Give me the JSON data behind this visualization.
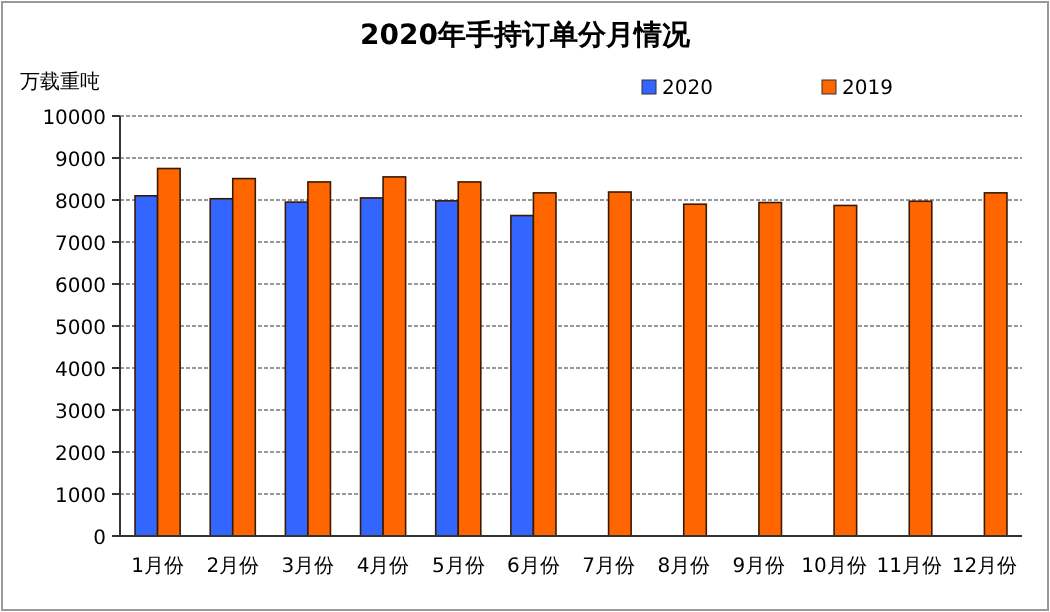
{
  "chart_data": {
    "type": "bar",
    "title": "2020年手持订单分月情况",
    "ylabel": "万载重吨",
    "categories": [
      "1月份",
      "2月份",
      "3月份",
      "4月份",
      "5月份",
      "6月份",
      "7月份",
      "8月份",
      "9月份",
      "10月份",
      "11月份",
      "12月份"
    ],
    "series": [
      {
        "name": "2020",
        "color": "#3366ff",
        "values": [
          8100,
          8030,
          7950,
          8050,
          7980,
          7630,
          null,
          null,
          null,
          null,
          null,
          null
        ]
      },
      {
        "name": "2019",
        "color": "#ff6600",
        "values": [
          8750,
          8510,
          8430,
          8550,
          8430,
          8170,
          8190,
          7900,
          7940,
          7870,
          7970,
          8170
        ]
      }
    ],
    "ylim": [
      0,
      10000
    ],
    "yticks": [
      0,
      1000,
      2000,
      3000,
      4000,
      5000,
      6000,
      7000,
      8000,
      9000,
      10000
    ],
    "grid": "y",
    "legend": "top right"
  }
}
